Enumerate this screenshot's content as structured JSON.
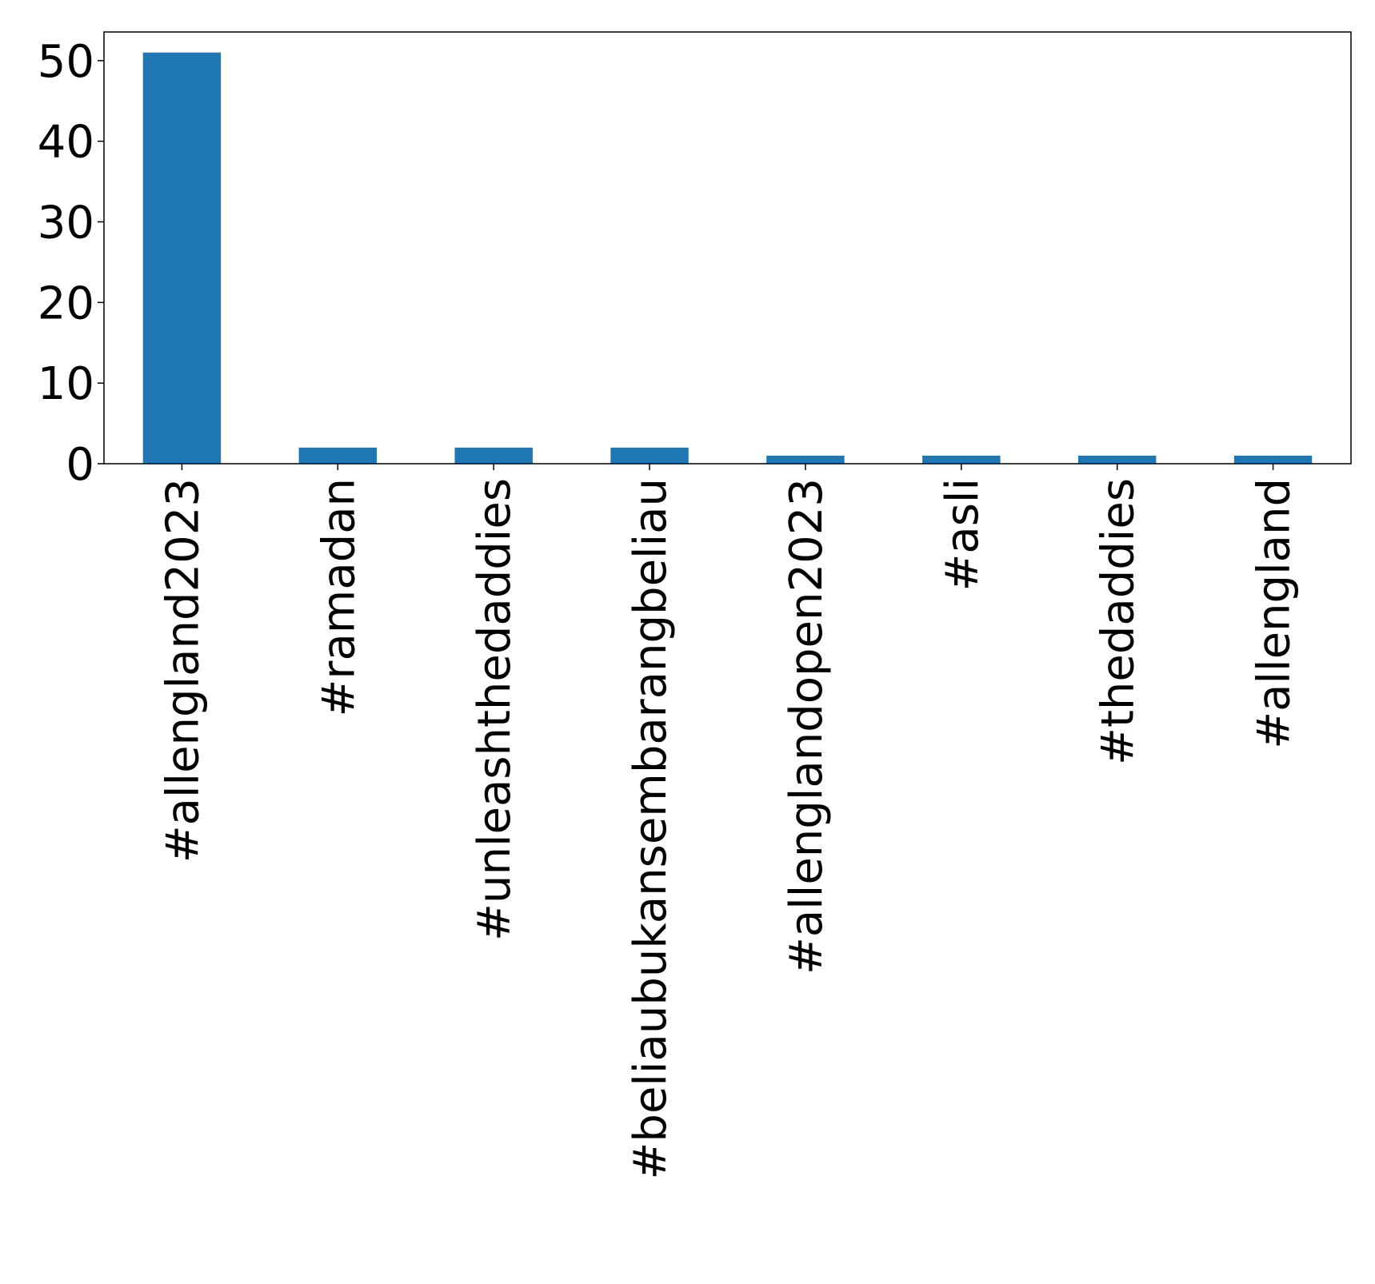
{
  "chart_data": {
    "type": "bar",
    "title": "",
    "xlabel": "",
    "ylabel": "",
    "categories": [
      "#allengland2023",
      "#ramadan",
      "#unleashthedaddies",
      "#beliaubukansembarangbeliau",
      "#allenglandopen2023",
      "#asli",
      "#thedaddies",
      "#allengland"
    ],
    "values": [
      51,
      2,
      2,
      2,
      1,
      1,
      1,
      1
    ],
    "ylim": [
      0,
      53.55
    ],
    "yticks": [
      0,
      10,
      20,
      30,
      40,
      50
    ],
    "grid": false,
    "legend": "none",
    "bar_color": "#1f77b4",
    "axis_color": "#000000",
    "x_label_rotation_deg": 90
  }
}
